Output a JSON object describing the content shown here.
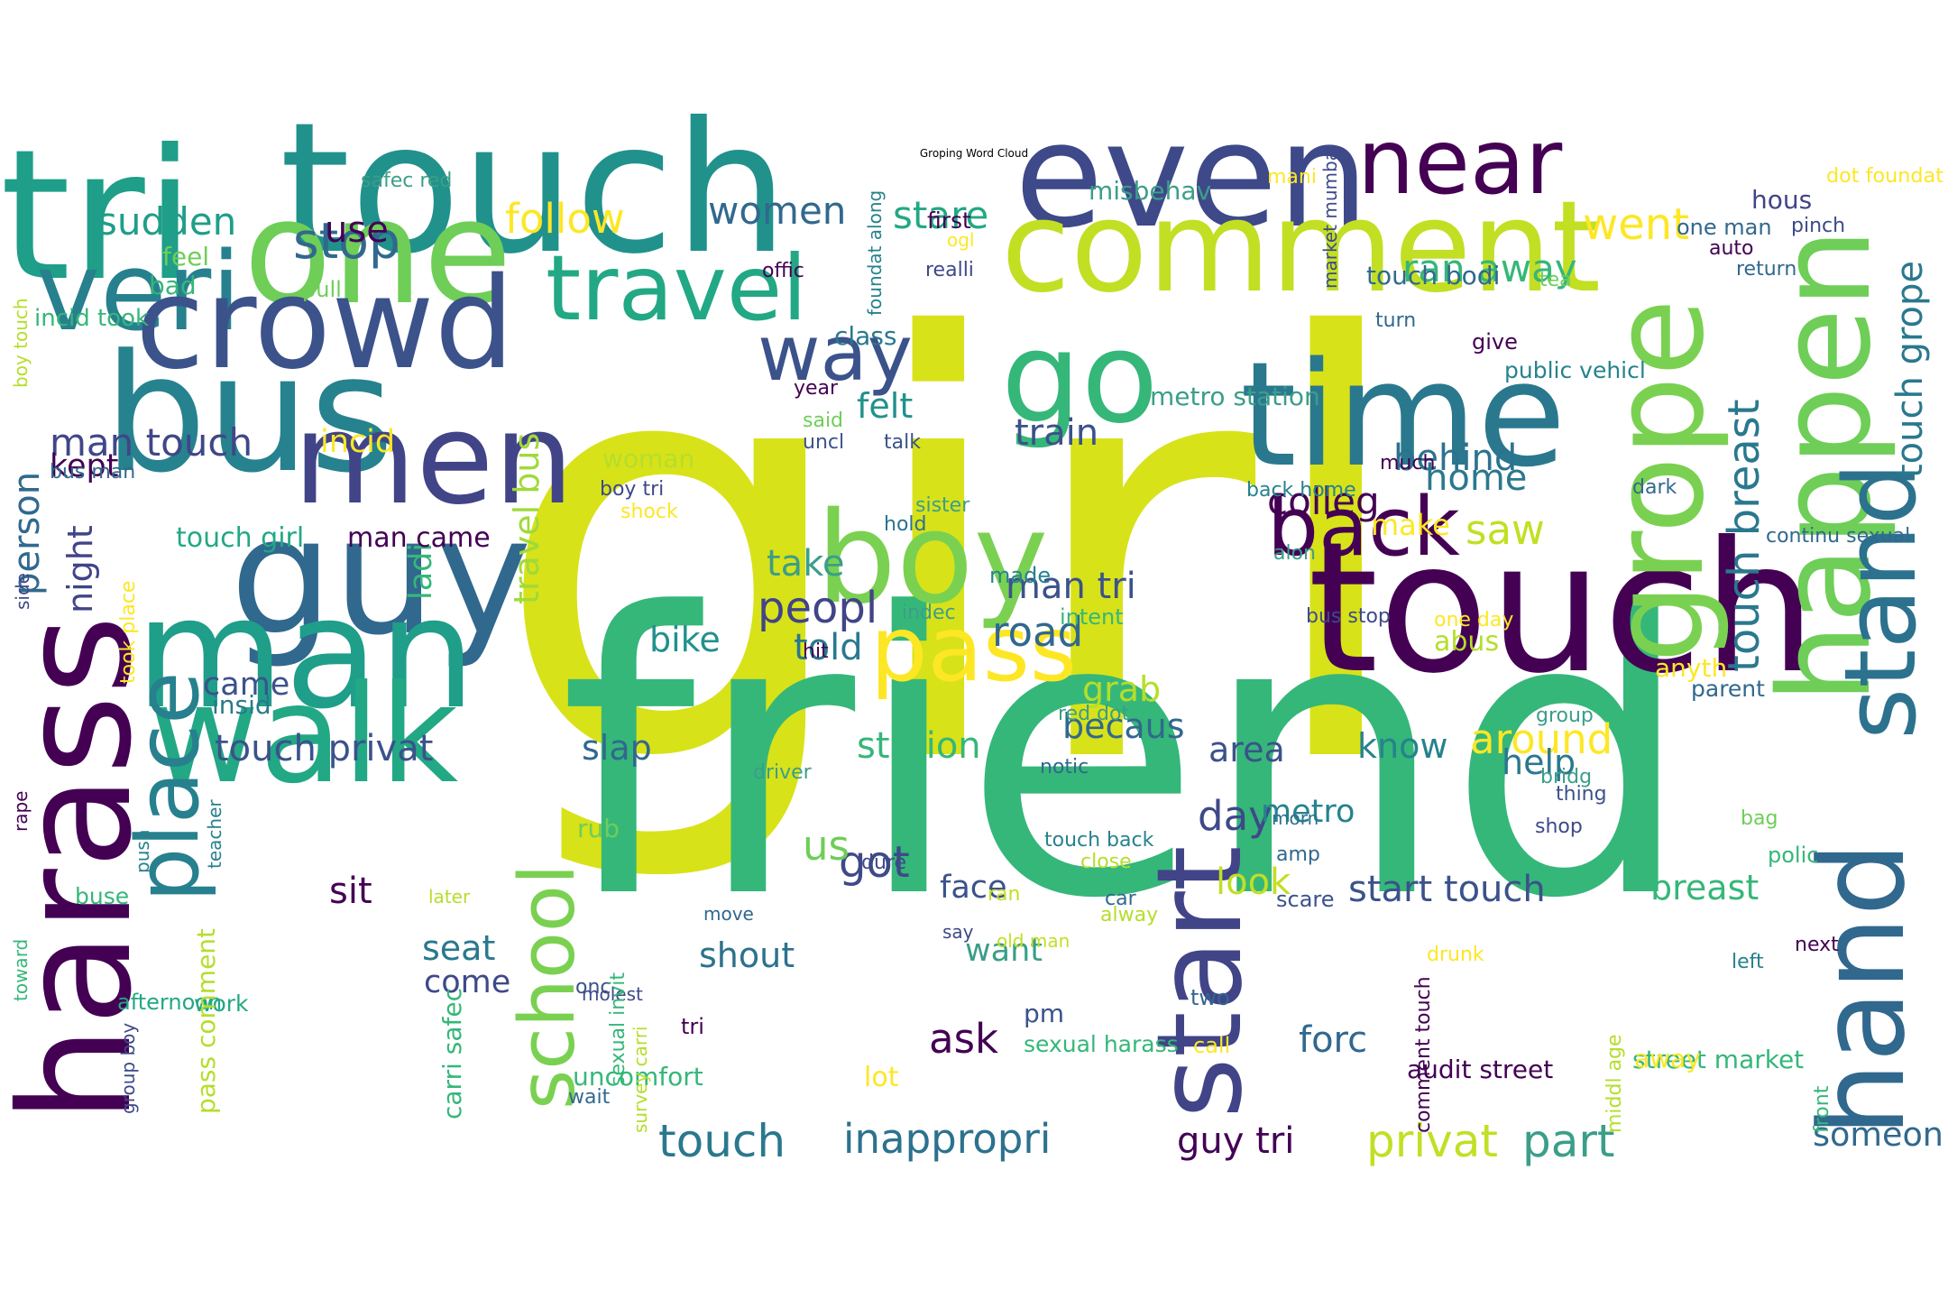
{
  "title": "Groping Word Cloud",
  "colors": {
    "background": "#ffffff",
    "colormap": "viridis"
  },
  "words": [
    {
      "text": "girl",
      "color": "#d8e219",
      "orientation": "horizontal"
    },
    {
      "text": "friend",
      "color": "#35b779",
      "orientation": "horizontal"
    },
    {
      "text": "touch",
      "color": "#440154",
      "orientation": "horizontal"
    },
    {
      "text": "touch",
      "color": "#21918c",
      "orientation": "horizontal"
    },
    {
      "text": "tri",
      "color": "#1f9e89",
      "orientation": "horizontal"
    },
    {
      "text": "even",
      "color": "#3e4989",
      "orientation": "horizontal"
    },
    {
      "text": "comment",
      "color": "#c2df23",
      "orientation": "horizontal"
    },
    {
      "text": "near",
      "color": "#440154",
      "orientation": "horizontal"
    },
    {
      "text": "one",
      "color": "#6ece58",
      "orientation": "horizontal"
    },
    {
      "text": "veri",
      "color": "#27808e",
      "orientation": "horizontal"
    },
    {
      "text": "travel",
      "color": "#22a884",
      "orientation": "horizontal"
    },
    {
      "text": "crowd",
      "color": "#3b528b",
      "orientation": "horizontal"
    },
    {
      "text": "go",
      "color": "#35b779",
      "orientation": "horizontal"
    },
    {
      "text": "bus",
      "color": "#26828e",
      "orientation": "horizontal"
    },
    {
      "text": "time",
      "color": "#2a788e",
      "orientation": "horizontal"
    },
    {
      "text": "men",
      "color": "#414487",
      "orientation": "horizontal"
    },
    {
      "text": "guy",
      "color": "#31688e",
      "orientation": "horizontal"
    },
    {
      "text": "boy",
      "color": "#7ad151",
      "orientation": "horizontal"
    },
    {
      "text": "man",
      "color": "#1f9e89",
      "orientation": "horizontal"
    },
    {
      "text": "walk",
      "color": "#22a884",
      "orientation": "horizontal"
    },
    {
      "text": "back",
      "color": "#440154",
      "orientation": "horizontal"
    },
    {
      "text": "pass",
      "color": "#fde725",
      "orientation": "horizontal"
    },
    {
      "text": "way",
      "color": "#3b528b",
      "orientation": "horizontal"
    },
    {
      "text": "harass",
      "color": "#440154",
      "orientation": "vertical"
    },
    {
      "text": "place",
      "color": "#27808e",
      "orientation": "vertical"
    },
    {
      "text": "happen",
      "color": "#6ece58",
      "orientation": "vertical"
    },
    {
      "text": "grope",
      "color": "#7ad151",
      "orientation": "vertical"
    },
    {
      "text": "stand",
      "color": "#2c728e",
      "orientation": "vertical"
    },
    {
      "text": "hand",
      "color": "#31688e",
      "orientation": "vertical"
    },
    {
      "text": "start",
      "color": "#414487",
      "orientation": "vertical"
    },
    {
      "text": "school",
      "color": "#7ad151",
      "orientation": "vertical"
    },
    {
      "text": "person",
      "color": "#31688e",
      "orientation": "vertical"
    },
    {
      "text": "touch breast",
      "color": "#2a788e",
      "orientation": "vertical"
    },
    {
      "text": "touch grope",
      "color": "#2a788e",
      "orientation": "vertical"
    },
    {
      "text": "travel bus",
      "color": "#a0da39",
      "orientation": "vertical"
    },
    {
      "text": "night",
      "color": "#414487",
      "orientation": "vertical"
    },
    {
      "text": "ladi",
      "color": "#35b779",
      "orientation": "vertical"
    },
    {
      "text": "stop",
      "color": "#31688e",
      "orientation": "horizontal"
    },
    {
      "text": "use",
      "color": "#440154",
      "orientation": "horizontal"
    },
    {
      "text": "sudden",
      "color": "#1f9e89",
      "orientation": "horizontal"
    },
    {
      "text": "follow",
      "color": "#fde725",
      "orientation": "horizontal"
    },
    {
      "text": "women",
      "color": "#31688e",
      "orientation": "horizontal"
    },
    {
      "text": "stare",
      "color": "#22a884",
      "orientation": "horizontal"
    },
    {
      "text": "went",
      "color": "#fde725",
      "orientation": "horizontal"
    },
    {
      "text": "ran away",
      "color": "#35b779",
      "orientation": "horizontal"
    },
    {
      "text": "man touch",
      "color": "#404688",
      "orientation": "horizontal"
    },
    {
      "text": "incid",
      "color": "#fde725",
      "orientation": "horizontal"
    },
    {
      "text": "kept",
      "color": "#440154",
      "orientation": "horizontal"
    },
    {
      "text": "felt",
      "color": "#21918c",
      "orientation": "horizontal"
    },
    {
      "text": "train",
      "color": "#3b528b",
      "orientation": "horizontal"
    },
    {
      "text": "behind",
      "color": "#2c728e",
      "orientation": "horizontal"
    },
    {
      "text": "home",
      "color": "#2a788e",
      "orientation": "horizontal"
    },
    {
      "text": "colleg",
      "color": "#440154",
      "orientation": "horizontal"
    },
    {
      "text": "saw",
      "color": "#c2df23",
      "orientation": "horizontal"
    },
    {
      "text": "make",
      "color": "#fde725",
      "orientation": "horizontal"
    },
    {
      "text": "peopl",
      "color": "#414487",
      "orientation": "horizontal"
    },
    {
      "text": "take",
      "color": "#3b9e89",
      "orientation": "horizontal"
    },
    {
      "text": "man tri",
      "color": "#3b528b",
      "orientation": "horizontal"
    },
    {
      "text": "road",
      "color": "#31688e",
      "orientation": "horizontal"
    },
    {
      "text": "told",
      "color": "#2a788e",
      "orientation": "horizontal"
    },
    {
      "text": "bike",
      "color": "#21918c",
      "orientation": "horizontal"
    },
    {
      "text": "touch girl",
      "color": "#22a884",
      "orientation": "horizontal"
    },
    {
      "text": "man came",
      "color": "#440154",
      "orientation": "horizontal"
    },
    {
      "text": "came",
      "color": "#3b528b",
      "orientation": "horizontal"
    },
    {
      "text": "insid",
      "color": "#2a788e",
      "orientation": "horizontal"
    },
    {
      "text": "touch privat",
      "color": "#3b528b",
      "orientation": "horizontal"
    },
    {
      "text": "slap",
      "color": "#31688e",
      "orientation": "horizontal"
    },
    {
      "text": "grab",
      "color": "#b5de2b",
      "orientation": "horizontal"
    },
    {
      "text": "becaus",
      "color": "#31688e",
      "orientation": "horizontal"
    },
    {
      "text": "station",
      "color": "#35b779",
      "orientation": "horizontal"
    },
    {
      "text": "area",
      "color": "#3b528b",
      "orientation": "horizontal"
    },
    {
      "text": "know",
      "color": "#26828e",
      "orientation": "horizontal"
    },
    {
      "text": "around",
      "color": "#fde725",
      "orientation": "horizontal"
    },
    {
      "text": "help",
      "color": "#2a788e",
      "orientation": "horizontal"
    },
    {
      "text": "day",
      "color": "#3e4989",
      "orientation": "horizontal"
    },
    {
      "text": "metro",
      "color": "#26828e",
      "orientation": "horizontal"
    },
    {
      "text": "got",
      "color": "#3e4989",
      "orientation": "horizontal"
    },
    {
      "text": "us",
      "color": "#6ece58",
      "orientation": "horizontal"
    },
    {
      "text": "sit",
      "color": "#440154",
      "orientation": "horizontal"
    },
    {
      "text": "seat",
      "color": "#2a788e",
      "orientation": "horizontal"
    },
    {
      "text": "come",
      "color": "#3e4989",
      "orientation": "horizontal"
    },
    {
      "text": "face",
      "color": "#3b528b",
      "orientation": "horizontal"
    },
    {
      "text": "look",
      "color": "#c2df23",
      "orientation": "horizontal"
    },
    {
      "text": "start touch",
      "color": "#3b528b",
      "orientation": "horizontal"
    },
    {
      "text": "breast",
      "color": "#35b779",
      "orientation": "horizontal"
    },
    {
      "text": "shout",
      "color": "#2c728e",
      "orientation": "horizontal"
    },
    {
      "text": "want",
      "color": "#3b9e89",
      "orientation": "horizontal"
    },
    {
      "text": "ask",
      "color": "#440154",
      "orientation": "horizontal"
    },
    {
      "text": "forc",
      "color": "#31688e",
      "orientation": "horizontal"
    },
    {
      "text": "touch",
      "color": "#2a788e",
      "orientation": "horizontal"
    },
    {
      "text": "inappropri",
      "color": "#2c728e",
      "orientation": "horizontal"
    },
    {
      "text": "guy tri",
      "color": "#440154",
      "orientation": "horizontal"
    },
    {
      "text": "privat",
      "color": "#c2df23",
      "orientation": "horizontal"
    },
    {
      "text": "part",
      "color": "#3b9e89",
      "orientation": "horizontal"
    },
    {
      "text": "someon",
      "color": "#31688e",
      "orientation": "horizontal"
    },
    {
      "text": "metro station",
      "color": "#3b9e89",
      "orientation": "horizontal"
    },
    {
      "text": "touch bodi",
      "color": "#31688e",
      "orientation": "horizontal"
    },
    {
      "text": "misbehav",
      "color": "#3b9e89",
      "orientation": "horizontal"
    },
    {
      "text": "hous",
      "color": "#414487",
      "orientation": "horizontal"
    },
    {
      "text": "dot foundat",
      "color": "#fde725",
      "orientation": "horizontal"
    },
    {
      "text": "safec red",
      "color": "#3b9e89",
      "orientation": "horizontal"
    },
    {
      "text": "mani",
      "color": "#fde725",
      "orientation": "horizontal"
    },
    {
      "text": "first",
      "color": "#440154",
      "orientation": "horizontal"
    },
    {
      "text": "ogl",
      "color": "#fde725",
      "orientation": "horizontal"
    },
    {
      "text": "offic",
      "color": "#440154",
      "orientation": "horizontal"
    },
    {
      "text": "realli",
      "color": "#3e4989",
      "orientation": "horizontal"
    },
    {
      "text": "feel",
      "color": "#6ece58",
      "orientation": "horizontal"
    },
    {
      "text": "bad",
      "color": "#35b779",
      "orientation": "horizontal"
    },
    {
      "text": "pull",
      "color": "#6ece58",
      "orientation": "horizontal"
    },
    {
      "text": "incid took",
      "color": "#35b779",
      "orientation": "horizontal"
    },
    {
      "text": "class",
      "color": "#2a788e",
      "orientation": "horizontal"
    },
    {
      "text": "turn",
      "color": "#31688e",
      "orientation": "horizontal"
    },
    {
      "text": "give",
      "color": "#440154",
      "orientation": "horizontal"
    },
    {
      "text": "public vehicl",
      "color": "#26828e",
      "orientation": "horizontal"
    },
    {
      "text": "one man",
      "color": "#31688e",
      "orientation": "horizontal"
    },
    {
      "text": "pinch",
      "color": "#3e4989",
      "orientation": "horizontal"
    },
    {
      "text": "auto",
      "color": "#440154",
      "orientation": "horizontal"
    },
    {
      "text": "return",
      "color": "#31688e",
      "orientation": "horizontal"
    },
    {
      "text": "tea",
      "color": "#6ece58",
      "orientation": "horizontal"
    },
    {
      "text": "year",
      "color": "#440154",
      "orientation": "horizontal"
    },
    {
      "text": "said",
      "color": "#6ece58",
      "orientation": "horizontal"
    },
    {
      "text": "uncl",
      "color": "#3b528b",
      "orientation": "horizontal"
    },
    {
      "text": "talk",
      "color": "#3b528b",
      "orientation": "horizontal"
    },
    {
      "text": "much",
      "color": "#440154",
      "orientation": "horizontal"
    },
    {
      "text": "woman",
      "color": "#b5de2b",
      "orientation": "horizontal"
    },
    {
      "text": "boy tri",
      "color": "#3e4989",
      "orientation": "horizontal"
    },
    {
      "text": "shock",
      "color": "#fde725",
      "orientation": "horizontal"
    },
    {
      "text": "hold",
      "color": "#2c728e",
      "orientation": "horizontal"
    },
    {
      "text": "sister",
      "color": "#3b9e89",
      "orientation": "horizontal"
    },
    {
      "text": "back home",
      "color": "#26828e",
      "orientation": "horizontal"
    },
    {
      "text": "dark",
      "color": "#31688e",
      "orientation": "horizontal"
    },
    {
      "text": "continu sexual",
      "color": "#31688e",
      "orientation": "horizontal"
    },
    {
      "text": "bus man",
      "color": "#31688e",
      "orientation": "horizontal"
    },
    {
      "text": "made",
      "color": "#26828e",
      "orientation": "horizontal"
    },
    {
      "text": "intent",
      "color": "#35b779",
      "orientation": "horizontal"
    },
    {
      "text": "indec",
      "color": "#3b9e89",
      "orientation": "horizontal"
    },
    {
      "text": "alon",
      "color": "#3b9e89",
      "orientation": "horizontal"
    },
    {
      "text": "bus stop",
      "color": "#3e4989",
      "orientation": "horizontal"
    },
    {
      "text": "one day",
      "color": "#fde725",
      "orientation": "horizontal"
    },
    {
      "text": "hit",
      "color": "#440154",
      "orientation": "horizontal"
    },
    {
      "text": "abus",
      "color": "#b5de2b",
      "orientation": "horizontal"
    },
    {
      "text": "anyth",
      "color": "#fde725",
      "orientation": "horizontal"
    },
    {
      "text": "parent",
      "color": "#31688e",
      "orientation": "horizontal"
    },
    {
      "text": "red dot",
      "color": "#3b9e89",
      "orientation": "horizontal"
    },
    {
      "text": "group",
      "color": "#3b9e89",
      "orientation": "horizontal"
    },
    {
      "text": "notic",
      "color": "#31688e",
      "orientation": "horizontal"
    },
    {
      "text": "driver",
      "color": "#3b9e89",
      "orientation": "horizontal"
    },
    {
      "text": "bridg",
      "color": "#3b9e89",
      "orientation": "horizontal"
    },
    {
      "text": "thing",
      "color": "#3b528b",
      "orientation": "horizontal"
    },
    {
      "text": "shop",
      "color": "#3e4989",
      "orientation": "horizontal"
    },
    {
      "text": "bag",
      "color": "#6ece58",
      "orientation": "horizontal"
    },
    {
      "text": "touch back",
      "color": "#26828e",
      "orientation": "horizontal"
    },
    {
      "text": "polic",
      "color": "#35b779",
      "orientation": "horizontal"
    },
    {
      "text": "rub",
      "color": "#6ece58",
      "orientation": "horizontal"
    },
    {
      "text": "dure",
      "color": "#3e4989",
      "orientation": "horizontal"
    },
    {
      "text": "amp",
      "color": "#31688e",
      "orientation": "horizontal"
    },
    {
      "text": "move",
      "color": "#31688e",
      "orientation": "horizontal"
    },
    {
      "text": "alway",
      "color": "#b5de2b",
      "orientation": "horizontal"
    },
    {
      "text": "molest",
      "color": "#3e4989",
      "orientation": "horizontal"
    },
    {
      "text": "morn",
      "color": "#2c728e",
      "orientation": "horizontal"
    },
    {
      "text": "buse",
      "color": "#35b779",
      "orientation": "horizontal"
    },
    {
      "text": "ran",
      "color": "#c2df23",
      "orientation": "horizontal"
    },
    {
      "text": "close",
      "color": "#b5de2b",
      "orientation": "horizontal"
    },
    {
      "text": "car",
      "color": "#31688e",
      "orientation": "horizontal"
    },
    {
      "text": "say",
      "color": "#3e4989",
      "orientation": "horizontal"
    },
    {
      "text": "old man",
      "color": "#c2df23",
      "orientation": "horizontal"
    },
    {
      "text": "later",
      "color": "#b5de2b",
      "orientation": "horizontal"
    },
    {
      "text": "two",
      "color": "#31688e",
      "orientation": "horizontal"
    },
    {
      "text": "scare",
      "color": "#3b528b",
      "orientation": "horizontal"
    },
    {
      "text": "next",
      "color": "#440154",
      "orientation": "horizontal"
    },
    {
      "text": "drunk",
      "color": "#fde725",
      "orientation": "horizontal"
    },
    {
      "text": "left",
      "color": "#26828e",
      "orientation": "horizontal"
    },
    {
      "text": "work",
      "color": "#22a884",
      "orientation": "horizontal"
    },
    {
      "text": "afternoon",
      "color": "#22a884",
      "orientation": "horizontal"
    },
    {
      "text": "onc",
      "color": "#3b528b",
      "orientation": "horizontal"
    },
    {
      "text": "tri",
      "color": "#440154",
      "orientation": "horizontal"
    },
    {
      "text": "pm",
      "color": "#3b528b",
      "orientation": "horizontal"
    },
    {
      "text": "sexual harass",
      "color": "#35b779",
      "orientation": "horizontal"
    },
    {
      "text": "call",
      "color": "#fde725",
      "orientation": "horizontal"
    },
    {
      "text": "street market",
      "color": "#35b779",
      "orientation": "horizontal"
    },
    {
      "text": "audit street",
      "color": "#440154",
      "orientation": "horizontal"
    },
    {
      "text": "uncomfort",
      "color": "#35b779",
      "orientation": "horizontal"
    },
    {
      "text": "lot",
      "color": "#fde725",
      "orientation": "horizontal"
    },
    {
      "text": "away",
      "color": "#fde725",
      "orientation": "horizontal"
    },
    {
      "text": "wait",
      "color": "#31688e",
      "orientation": "horizontal"
    },
    {
      "text": "sexual invit",
      "color": "#35b779",
      "orientation": "vertical"
    },
    {
      "text": "pass comment",
      "color": "#b5de2b",
      "orientation": "vertical"
    },
    {
      "text": "carri safec",
      "color": "#35b779",
      "orientation": "vertical"
    },
    {
      "text": "survey carri",
      "color": "#b5de2b",
      "orientation": "vertical"
    },
    {
      "text": "comment touch",
      "color": "#440154",
      "orientation": "vertical"
    },
    {
      "text": "middl age",
      "color": "#b5de2b",
      "orientation": "vertical"
    },
    {
      "text": "front",
      "color": "#35b779",
      "orientation": "vertical"
    },
    {
      "text": "side",
      "color": "#3e4989",
      "orientation": "vertical"
    },
    {
      "text": "took place",
      "color": "#fde725",
      "orientation": "vertical"
    },
    {
      "text": "boy touch",
      "color": "#b5de2b",
      "orientation": "vertical"
    },
    {
      "text": "rape",
      "color": "#440154",
      "orientation": "vertical"
    },
    {
      "text": "push",
      "color": "#26828e",
      "orientation": "vertical"
    },
    {
      "text": "toward",
      "color": "#35b779",
      "orientation": "vertical"
    },
    {
      "text": "group boy",
      "color": "#3e4989",
      "orientation": "vertical"
    },
    {
      "text": "teacher",
      "color": "#26828e",
      "orientation": "vertical"
    },
    {
      "text": "foundat along",
      "color": "#26828e",
      "orientation": "vertical"
    },
    {
      "text": "market mumbai",
      "color": "#3e4989",
      "orientation": "vertical"
    }
  ]
}
